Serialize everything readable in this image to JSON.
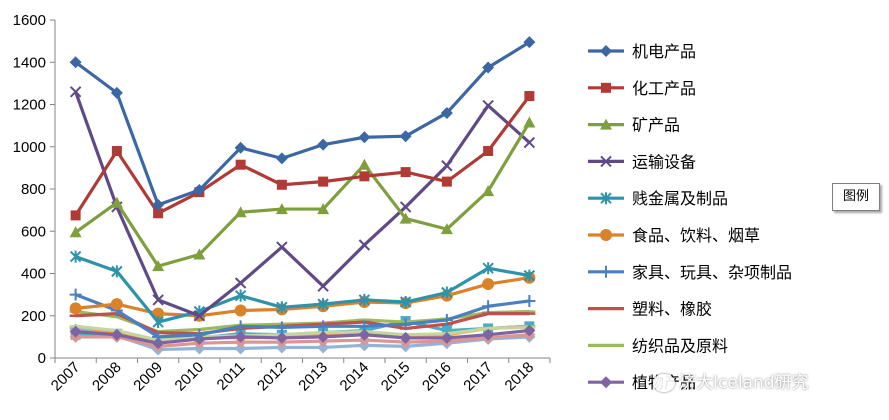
{
  "chart_data": {
    "type": "line",
    "title": "",
    "xlabel": "",
    "ylabel": "",
    "ylim": [
      0,
      1600
    ],
    "yticks": [
      0,
      200,
      400,
      600,
      800,
      1000,
      1200,
      1400,
      1600
    ],
    "grid": false,
    "legend_position": "right",
    "categories": [
      "2007",
      "2008",
      "2009",
      "2010",
      "2011",
      "2012",
      "2013",
      "2014",
      "2015",
      "2016",
      "2017",
      "2018"
    ],
    "series": [
      {
        "name": "机电产品",
        "color": "#3b67a3",
        "marker": "diamond",
        "values": [
          1400,
          1255,
          725,
          795,
          995,
          945,
          1010,
          1045,
          1050,
          1160,
          1375,
          1495
        ]
      },
      {
        "name": "化工产品",
        "color": "#b03a35",
        "marker": "square",
        "values": [
          675,
          980,
          685,
          785,
          915,
          820,
          835,
          860,
          880,
          835,
          980,
          1240
        ]
      },
      {
        "name": "矿产品",
        "color": "#7f9f3d",
        "marker": "triangle",
        "values": [
          595,
          735,
          435,
          490,
          690,
          705,
          705,
          915,
          660,
          610,
          790,
          1115
        ]
      },
      {
        "name": "运输设备",
        "color": "#5f4a87",
        "marker": "x",
        "values": [
          1260,
          715,
          275,
          200,
          355,
          525,
          340,
          535,
          715,
          910,
          1195,
          1020
        ]
      },
      {
        "name": "贱金属及制品",
        "color": "#2e92a9",
        "marker": "asterisk",
        "values": [
          480,
          410,
          170,
          220,
          295,
          240,
          255,
          275,
          265,
          310,
          425,
          390
        ]
      },
      {
        "name": "食品、饮料、烟草",
        "color": "#d9822b",
        "marker": "circle",
        "values": [
          235,
          255,
          210,
          200,
          225,
          230,
          245,
          265,
          260,
          295,
          350,
          380
        ]
      },
      {
        "name": "家具、玩具、杂项制品",
        "color": "#4a80c0",
        "marker": "plus",
        "values": [
          300,
          225,
          100,
          110,
          150,
          145,
          150,
          150,
          160,
          180,
          245,
          270
        ]
      },
      {
        "name": "塑料、橡胶",
        "color": "#c0504d",
        "marker": "dash",
        "values": [
          200,
          210,
          120,
          115,
          140,
          150,
          160,
          170,
          140,
          160,
          210,
          210
        ]
      },
      {
        "name": "纺织品及原料",
        "color": "#9bbb59",
        "marker": "dash",
        "values": [
          220,
          195,
          125,
          135,
          155,
          160,
          165,
          180,
          170,
          185,
          215,
          220
        ]
      },
      {
        "name": "植物产品",
        "color": "#8064a2",
        "marker": "diamond",
        "values": [
          125,
          110,
          70,
          90,
          100,
          95,
          100,
          110,
          95,
          95,
          110,
          130
        ]
      }
    ],
    "extra_series": [
      {
        "color": "#4bacc6",
        "marker": "square",
        "values": [
          110,
          115,
          80,
          95,
          115,
          110,
          120,
          130,
          175,
          130,
          140,
          150
        ]
      },
      {
        "color": "#f79646",
        "marker": "dash",
        "values": [
          140,
          120,
          80,
          100,
          95,
          100,
          110,
          120,
          100,
          110,
          140,
          150
        ]
      },
      {
        "color": "#95b3d7",
        "marker": "diamond",
        "values": [
          135,
          105,
          40,
          45,
          45,
          50,
          50,
          60,
          55,
          70,
          90,
          100
        ]
      },
      {
        "color": "#d99694",
        "marker": "diamond",
        "values": [
          100,
          100,
          55,
          70,
          75,
          75,
          80,
          85,
          75,
          80,
          95,
          110
        ]
      },
      {
        "color": "#c3d69b",
        "marker": "dash",
        "values": [
          150,
          130,
          85,
          100,
          105,
          110,
          120,
          125,
          110,
          115,
          140,
          145
        ]
      }
    ]
  },
  "tooltip_label": "图例",
  "watermark_text": "济大Iceland研究"
}
